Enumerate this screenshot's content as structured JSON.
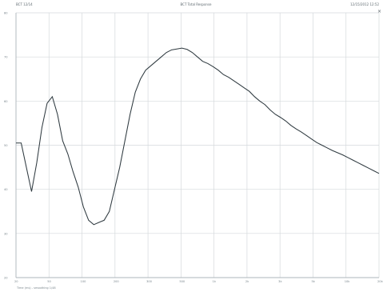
{
  "header": {
    "left_text": "BCT 12/14",
    "center_text": "BCT Total Response",
    "right_text": "12/15/2012 12:52"
  },
  "icons": {
    "close": "close-icon"
  },
  "footer_note": "Time (ms) - smoothing 1/48",
  "chart_data": {
    "type": "line",
    "title": "",
    "xlabel": "",
    "ylabel": "",
    "grid": true,
    "line_color": "#2f3a40",
    "grid_color": "#d5d9dc",
    "axis_color": "#aeb6bb",
    "x_ticks": [
      "20",
      "50",
      "100",
      "200",
      "300",
      "500",
      "1k",
      "2k",
      "3k",
      "5k",
      "10k",
      "20k"
    ],
    "y_ticks": [
      "20",
      "30",
      "40",
      "50",
      "60",
      "70",
      "80"
    ],
    "x": [
      0,
      1,
      2,
      3,
      4,
      5,
      6,
      7,
      8,
      9,
      10,
      11,
      12,
      13,
      14,
      15,
      16,
      17,
      18,
      19,
      20,
      21,
      22,
      23,
      24,
      25,
      26,
      27,
      28,
      29,
      30,
      31,
      32,
      33,
      34,
      35,
      36,
      37,
      38,
      39,
      40,
      41,
      42,
      43,
      44,
      45,
      46,
      47,
      48,
      49,
      50,
      51,
      52,
      53,
      54,
      55,
      56,
      57,
      58,
      59,
      60,
      61,
      62,
      63,
      64,
      65,
      66,
      67,
      68,
      69,
      70
    ],
    "y": [
      50.5,
      50.5,
      45.0,
      39.5,
      46.0,
      54.0,
      59.5,
      61.0,
      57.0,
      51.0,
      48.0,
      44.0,
      40.5,
      36.0,
      33.0,
      32.0,
      32.5,
      33.0,
      35.0,
      40.0,
      45.0,
      51.0,
      57.0,
      62.0,
      65.0,
      67.0,
      68.0,
      69.0,
      70.0,
      71.0,
      71.6,
      71.8,
      72.0,
      71.7,
      71.0,
      70.0,
      69.0,
      68.5,
      67.8,
      67.0,
      66.0,
      65.4,
      64.6,
      63.8,
      63.0,
      62.2,
      61.0,
      60.0,
      59.2,
      58.0,
      57.0,
      56.3,
      55.5,
      54.5,
      53.7,
      53.0,
      52.2,
      51.4,
      50.6,
      50.0,
      49.4,
      48.8,
      48.3,
      47.8,
      47.2,
      46.6,
      46.0,
      45.4,
      44.8,
      44.2,
      43.6
    ]
  }
}
